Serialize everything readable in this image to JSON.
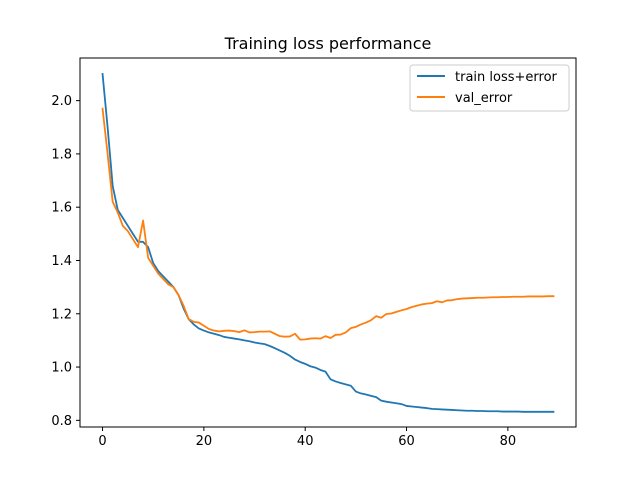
{
  "chart_data": {
    "type": "line",
    "title": "Training loss performance",
    "xlabel": "",
    "ylabel": "",
    "xlim": [
      -4.45,
      93.45
    ],
    "ylim": [
      0.775,
      2.16
    ],
    "xticks": [
      0,
      20,
      40,
      60,
      80
    ],
    "yticks": [
      0.8,
      1.0,
      1.2,
      1.4,
      1.6,
      1.8,
      2.0
    ],
    "ytick_labels": [
      "0.8",
      "1.0",
      "1.2",
      "1.4",
      "1.6",
      "1.8",
      "2.0"
    ],
    "grid": false,
    "legend_position": "upper right",
    "x": [
      0,
      1,
      2,
      3,
      4,
      5,
      6,
      7,
      8,
      9,
      10,
      11,
      12,
      13,
      14,
      15,
      16,
      17,
      18,
      19,
      20,
      21,
      22,
      23,
      24,
      25,
      26,
      27,
      28,
      29,
      30,
      31,
      32,
      33,
      34,
      35,
      36,
      37,
      38,
      39,
      40,
      41,
      42,
      43,
      44,
      45,
      46,
      47,
      48,
      49,
      50,
      51,
      52,
      53,
      54,
      55,
      56,
      57,
      58,
      59,
      60,
      61,
      62,
      63,
      64,
      65,
      66,
      67,
      68,
      69,
      70,
      71,
      72,
      73,
      74,
      75,
      76,
      77,
      78,
      79,
      80,
      81,
      82,
      83,
      84,
      85,
      86,
      87,
      88,
      89
    ],
    "series": [
      {
        "name": "train loss+error",
        "color": "#1f77b4",
        "values": [
          2.1,
          1.9,
          1.68,
          1.59,
          1.56,
          1.53,
          1.5,
          1.47,
          1.47,
          1.45,
          1.39,
          1.36,
          1.34,
          1.32,
          1.3,
          1.27,
          1.22,
          1.18,
          1.16,
          1.145,
          1.137,
          1.13,
          1.125,
          1.12,
          1.113,
          1.11,
          1.107,
          1.104,
          1.1,
          1.097,
          1.092,
          1.089,
          1.086,
          1.079,
          1.071,
          1.062,
          1.053,
          1.042,
          1.028,
          1.019,
          1.012,
          1.003,
          0.998,
          0.989,
          0.983,
          0.954,
          0.946,
          0.94,
          0.935,
          0.93,
          0.908,
          0.901,
          0.897,
          0.892,
          0.887,
          0.874,
          0.87,
          0.867,
          0.864,
          0.861,
          0.854,
          0.852,
          0.85,
          0.848,
          0.846,
          0.843,
          0.842,
          0.841,
          0.84,
          0.839,
          0.838,
          0.837,
          0.836,
          0.836,
          0.835,
          0.835,
          0.834,
          0.834,
          0.834,
          0.833,
          0.833,
          0.833,
          0.833,
          0.832,
          0.832,
          0.832,
          0.832,
          0.832,
          0.832,
          0.832
        ]
      },
      {
        "name": "val_error",
        "color": "#ff7f0e",
        "values": [
          1.97,
          1.8,
          1.62,
          1.58,
          1.53,
          1.51,
          1.48,
          1.45,
          1.55,
          1.41,
          1.38,
          1.35,
          1.33,
          1.31,
          1.3,
          1.27,
          1.23,
          1.18,
          1.17,
          1.167,
          1.155,
          1.143,
          1.137,
          1.134,
          1.136,
          1.137,
          1.135,
          1.131,
          1.138,
          1.13,
          1.131,
          1.133,
          1.133,
          1.134,
          1.125,
          1.116,
          1.114,
          1.115,
          1.125,
          1.103,
          1.104,
          1.107,
          1.108,
          1.107,
          1.116,
          1.109,
          1.121,
          1.122,
          1.13,
          1.146,
          1.151,
          1.16,
          1.167,
          1.176,
          1.191,
          1.185,
          1.199,
          1.201,
          1.207,
          1.213,
          1.218,
          1.225,
          1.23,
          1.235,
          1.238,
          1.24,
          1.247,
          1.243,
          1.25,
          1.251,
          1.255,
          1.257,
          1.258,
          1.259,
          1.26,
          1.26,
          1.261,
          1.262,
          1.262,
          1.263,
          1.263,
          1.264,
          1.264,
          1.264,
          1.265,
          1.265,
          1.265,
          1.265,
          1.266,
          1.266
        ]
      }
    ]
  }
}
